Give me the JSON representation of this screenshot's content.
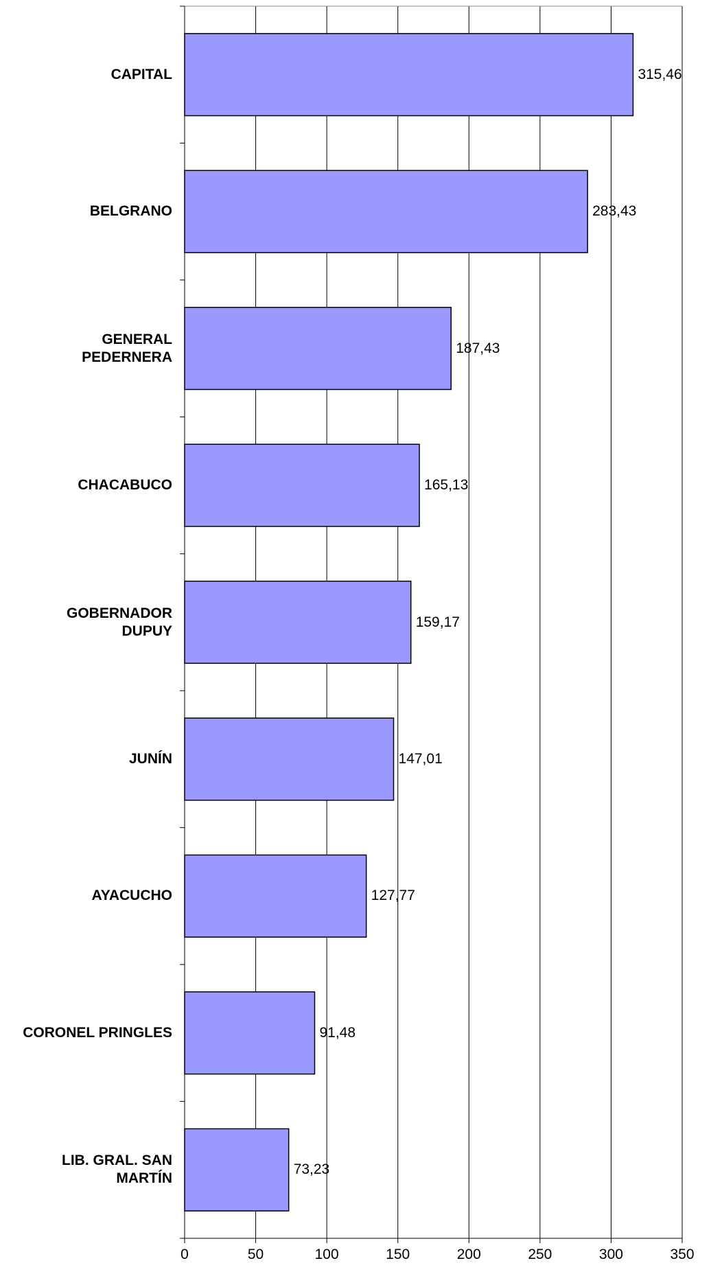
{
  "chart_data": {
    "type": "barh",
    "categories": [
      "CAPITAL",
      "BELGRANO",
      "GENERAL\nPEDERNERA",
      "CHACABUCO",
      "GOBERNADOR\nDUPUY",
      "JUNÍN",
      "AYACUCHO",
      "CORONEL PRINGLES",
      "LIB. GRAL. SAN\nMARTÍN"
    ],
    "values": [
      315.46,
      283.43,
      187.43,
      165.13,
      159.17,
      147.01,
      127.77,
      91.48,
      73.23
    ],
    "value_labels": [
      "315,46",
      "283,43",
      "187,43",
      "165,13",
      "159,17",
      "147,01",
      "127,77",
      "91,48",
      "73,23"
    ],
    "color": "#9999ff",
    "xlim": [
      0,
      350
    ],
    "xticks": [
      0,
      50,
      100,
      150,
      200,
      250,
      300,
      350
    ],
    "grid": true
  }
}
